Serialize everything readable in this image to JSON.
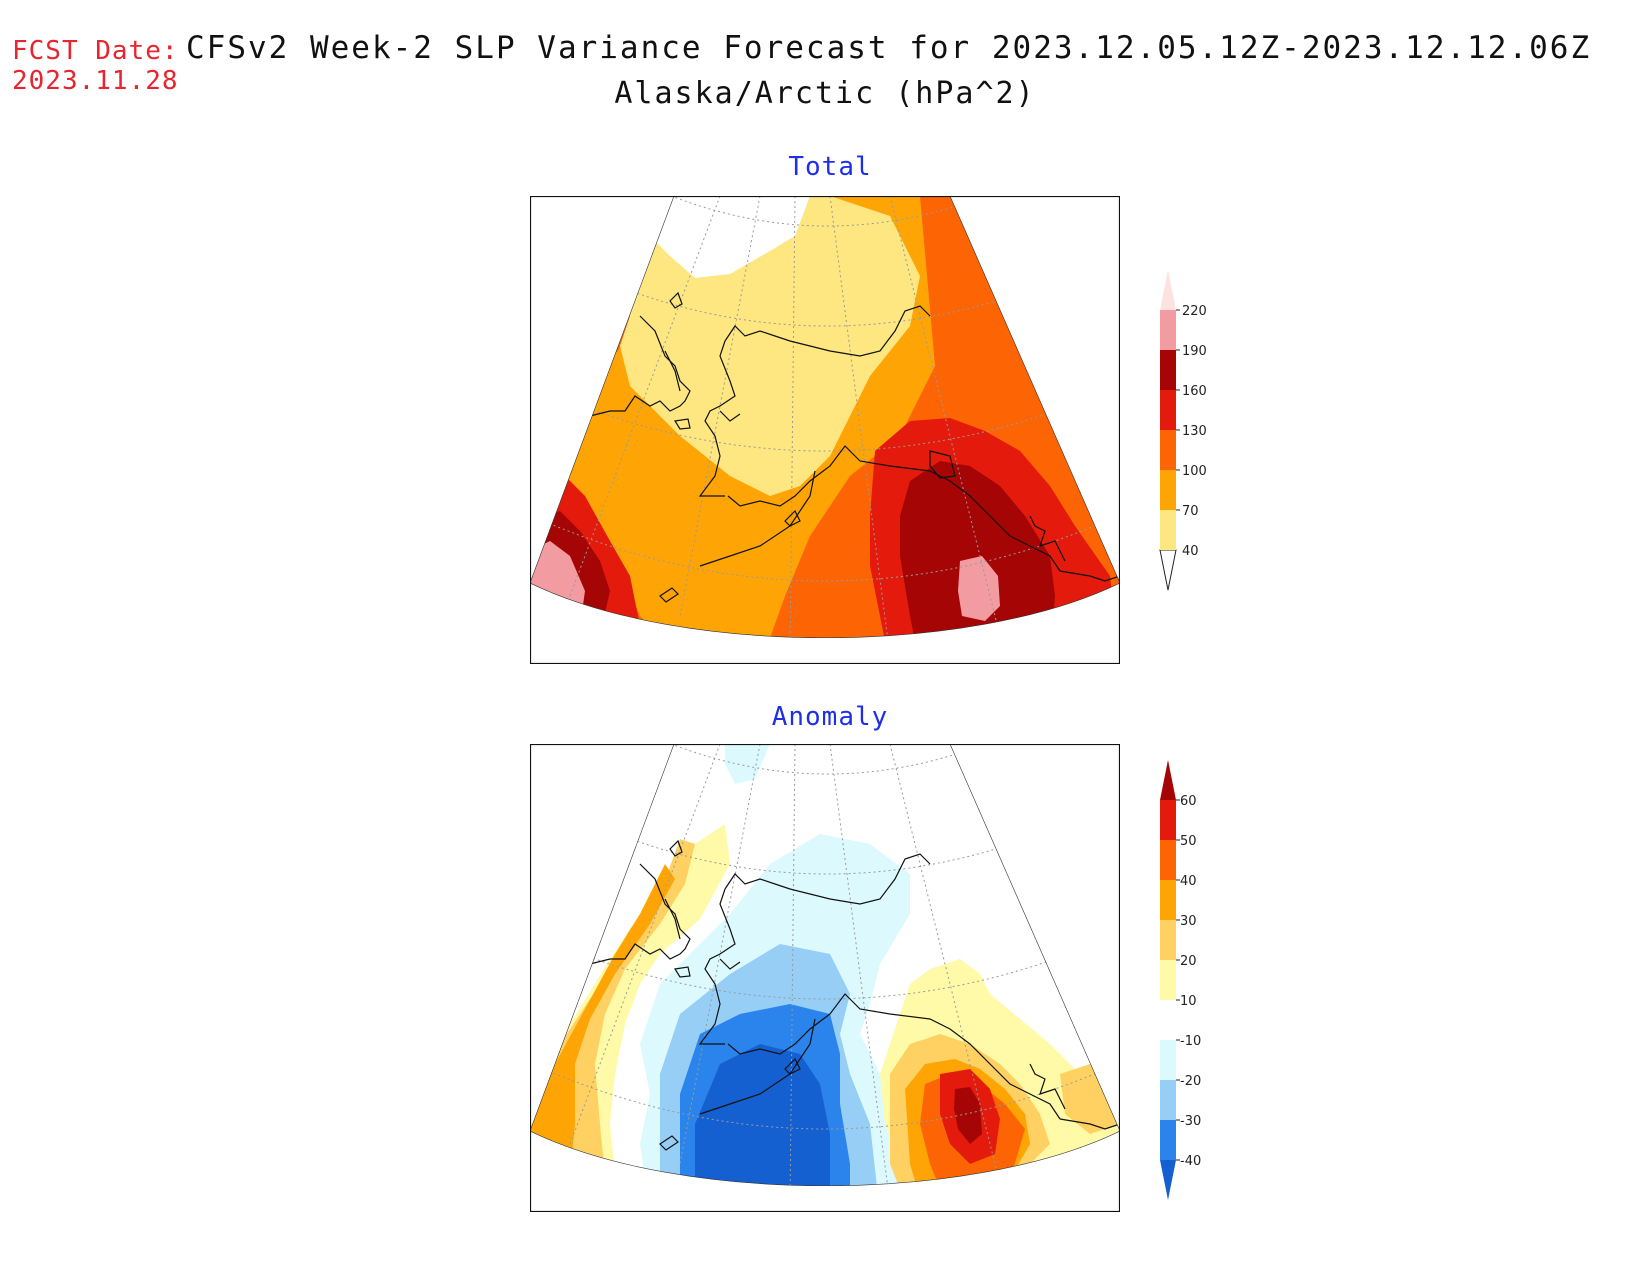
{
  "header": {
    "fcst_label": "FCST Date:",
    "fcst_date": "2023.11.28",
    "title": "CFSv2 Week-2 SLP Variance Forecast for 2023.12.05.12Z-2023.12.12.06Z",
    "subtitle": "Alaska/Arctic (hPa^2)"
  },
  "panels": {
    "total": {
      "title": "Total",
      "levels": [
        "40",
        "70",
        "100",
        "130",
        "160",
        "190",
        "220"
      ],
      "colors": [
        "#fee680",
        "#fea505",
        "#fd6404",
        "#e41a0c",
        "#a60505",
        "#f29ba0",
        "#fde2e2"
      ]
    },
    "anomaly": {
      "title": "Anomaly",
      "levels": [
        "-40",
        "-30",
        "-20",
        "-10",
        "10",
        "20",
        "30",
        "40",
        "50",
        "60"
      ],
      "colors": [
        "#1560d0",
        "#2a84ec",
        "#96cef6",
        "#dcf9fe",
        "#ffffff",
        "#fffaa8",
        "#fed162",
        "#fea505",
        "#fd6404",
        "#e41a0c",
        "#a60505"
      ]
    }
  }
}
